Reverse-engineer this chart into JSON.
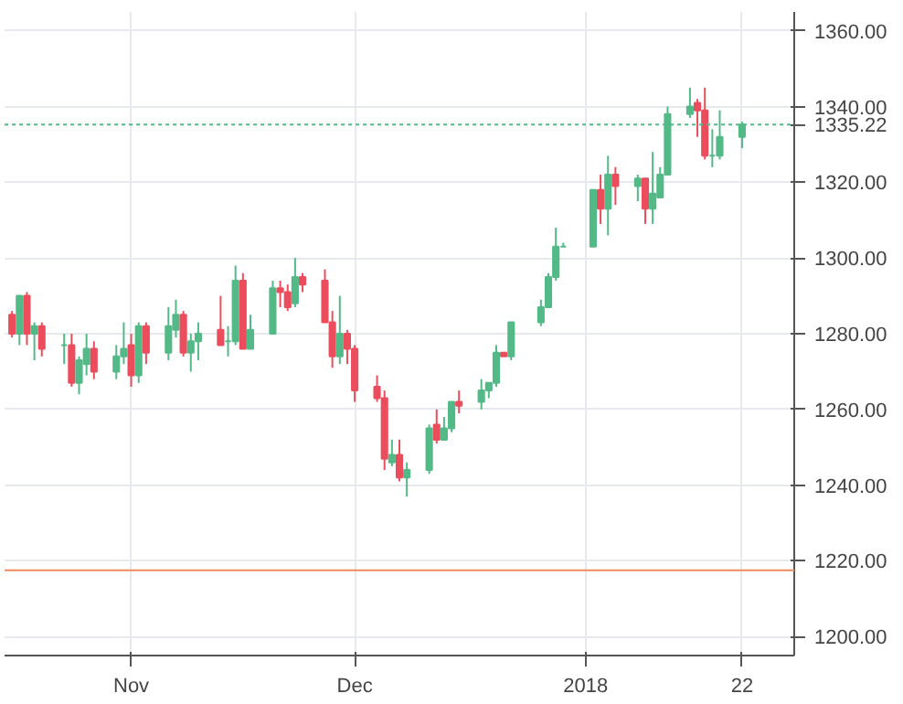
{
  "chart_data": {
    "type": "candlestick",
    "x": [
      "2017-10-16",
      "2017-10-17",
      "2017-10-18",
      "2017-10-19",
      "2017-10-20",
      "2017-10-23",
      "2017-10-24",
      "2017-10-25",
      "2017-10-26",
      "2017-10-27",
      "2017-10-30",
      "2017-10-31",
      "2017-11-01",
      "2017-11-02",
      "2017-11-03",
      "2017-11-06",
      "2017-11-07",
      "2017-11-08",
      "2017-11-09",
      "2017-11-10",
      "2017-11-13",
      "2017-11-14",
      "2017-11-15",
      "2017-11-16",
      "2017-11-17",
      "2017-11-20",
      "2017-11-21",
      "2017-11-22",
      "2017-11-23",
      "2017-11-24",
      "2017-11-27",
      "2017-11-28",
      "2017-11-29",
      "2017-11-30",
      "2017-12-01",
      "2017-12-04",
      "2017-12-05",
      "2017-12-06",
      "2017-12-07",
      "2017-12-08",
      "2017-12-11",
      "2017-12-12",
      "2017-12-13",
      "2017-12-14",
      "2017-12-15",
      "2017-12-18",
      "2017-12-19",
      "2017-12-20",
      "2017-12-21",
      "2017-12-22",
      "2017-12-26",
      "2017-12-27",
      "2017-12-28",
      "2017-12-29",
      "2018-01-02",
      "2018-01-03",
      "2018-01-04",
      "2018-01-05",
      "2018-01-08",
      "2018-01-09",
      "2018-01-10",
      "2018-01-11",
      "2018-01-12",
      "2018-01-15",
      "2018-01-16",
      "2018-01-17",
      "2018-01-18",
      "2018-01-19",
      "2018-01-22"
    ],
    "ohlc": [
      [
        1285,
        1286,
        1279,
        1280
      ],
      [
        1280,
        1290,
        1277,
        1290
      ],
      [
        1290,
        1291,
        1277,
        1280
      ],
      [
        1280,
        1283,
        1273,
        1282
      ],
      [
        1282,
        1283,
        1274,
        1276
      ],
      [
        1277,
        1280,
        1272,
        1277
      ],
      [
        1277,
        1280,
        1266,
        1267
      ],
      [
        1267,
        1274,
        1264,
        1273
      ],
      [
        1272,
        1280,
        1269,
        1276
      ],
      [
        1276,
        1278,
        1268,
        1270
      ],
      [
        1270,
        1277,
        1268,
        1274
      ],
      [
        1274,
        1283,
        1272,
        1276
      ],
      [
        1277,
        1280,
        1266,
        1269
      ],
      [
        1269,
        1283,
        1267,
        1282
      ],
      [
        1282,
        1283,
        1272,
        1275
      ],
      [
        1275,
        1287,
        1273,
        1282
      ],
      [
        1281,
        1289,
        1279,
        1285
      ],
      [
        1285,
        1286,
        1274,
        1275
      ],
      [
        1275,
        1280,
        1270,
        1278
      ],
      [
        1278,
        1283,
        1273,
        1280
      ],
      [
        1281,
        1290,
        1277,
        1277
      ],
      [
        1278,
        1282,
        1274,
        1278
      ],
      [
        1278,
        1298,
        1277,
        1294
      ],
      [
        1294,
        1296,
        1276,
        1276
      ],
      [
        1276,
        1285,
        1276,
        1281
      ],
      [
        1280,
        1294,
        1280,
        1292
      ],
      [
        1292,
        1294,
        1287,
        1291
      ],
      [
        1291,
        1293,
        1286,
        1287
      ],
      [
        1288,
        1300,
        1287,
        1295
      ],
      [
        1295,
        1296,
        1291,
        1293
      ],
      [
        1294,
        1297,
        1283,
        1283
      ],
      [
        1283,
        1286,
        1271,
        1274
      ],
      [
        1274,
        1290,
        1272,
        1280
      ],
      [
        1280,
        1281,
        1272,
        1276
      ],
      [
        1276,
        1277,
        1262,
        1265
      ],
      [
        1266,
        1269,
        1262,
        1263
      ],
      [
        1263,
        1265,
        1244,
        1247
      ],
      [
        1246,
        1252,
        1245,
        1248
      ],
      [
        1248,
        1252,
        1241,
        1242
      ],
      [
        1242,
        1246,
        1237,
        1244
      ],
      [
        1244,
        1256,
        1243,
        1255
      ],
      [
        1256,
        1260,
        1251,
        1252
      ],
      [
        1252,
        1258,
        1252,
        1255
      ],
      [
        1255,
        1262,
        1254,
        1262
      ],
      [
        1262,
        1265,
        1259,
        1261
      ],
      [
        1262,
        1268,
        1260,
        1265
      ],
      [
        1265,
        1267,
        1263,
        1267
      ],
      [
        1267,
        1277,
        1266,
        1275
      ],
      [
        1275,
        1275,
        1274,
        1274
      ],
      [
        1274,
        1283,
        1273,
        1283
      ],
      [
        1283,
        1289,
        1282,
        1287
      ],
      [
        1287,
        1296,
        1287,
        1295
      ],
      [
        1295,
        1308,
        1294,
        1303
      ],
      [
        1303,
        1304,
        1303,
        1303
      ],
      [
        1303,
        1318,
        1303,
        1318
      ],
      [
        1318,
        1322,
        1309,
        1313
      ],
      [
        1313,
        1327,
        1306,
        1322
      ],
      [
        1322,
        1324,
        1314,
        1319
      ],
      [
        1319,
        1322,
        1315,
        1321
      ],
      [
        1321,
        1321,
        1309,
        1313
      ],
      [
        1313,
        1328,
        1309,
        1317
      ],
      [
        1316,
        1324,
        1316,
        1322
      ],
      [
        1322,
        1340,
        1322,
        1338
      ],
      [
        1338,
        1345,
        1337,
        1340
      ],
      [
        1341,
        1342,
        1332,
        1339
      ],
      [
        1339,
        1345,
        1326,
        1327
      ],
      [
        1327,
        1334,
        1324,
        1327
      ],
      [
        1327,
        1339,
        1326,
        1332
      ],
      [
        1332,
        1336,
        1329,
        1335.22
      ]
    ],
    "xlim": [
      "2017-10-15",
      "2018-01-29"
    ],
    "xticks": [
      {
        "value": "2017-11-01",
        "label": "Nov"
      },
      {
        "value": "2017-12-01",
        "label": "Dec"
      },
      {
        "value": "2018-01-01",
        "label": "2018"
      },
      {
        "value": "2018-01-22",
        "label": "22"
      }
    ],
    "ylim": [
      1195,
      1365
    ],
    "yticks": [
      {
        "value": 1200,
        "label": "1200.00"
      },
      {
        "value": 1220,
        "label": "1220.00"
      },
      {
        "value": 1240,
        "label": "1240.00"
      },
      {
        "value": 1260,
        "label": "1260.00"
      },
      {
        "value": 1280,
        "label": "1280.00"
      },
      {
        "value": 1300,
        "label": "1300.00"
      },
      {
        "value": 1320,
        "label": "1320.00"
      },
      {
        "value": 1340,
        "label": "1340.00"
      },
      {
        "value": 1360,
        "label": "1360.00"
      }
    ],
    "grid": true,
    "ref_lines": [
      {
        "axis": "y",
        "value": 1335.22,
        "label": "1335.22",
        "color": "#53b987",
        "line_style": "dotted"
      },
      {
        "axis": "y",
        "value": 1217.5,
        "color": "#f08a5d",
        "line_style": "solid"
      }
    ]
  }
}
